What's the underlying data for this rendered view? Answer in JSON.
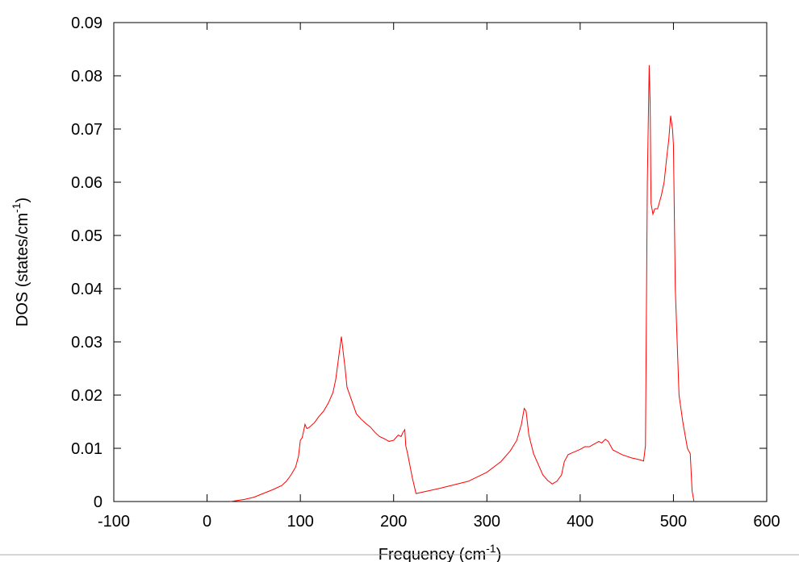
{
  "chart_data": {
    "type": "line",
    "xlabel": [
      "Frequency (cm",
      "-1",
      ")"
    ],
    "ylabel": [
      "DOS (states/cm",
      "-1",
      ")"
    ],
    "xlim": [
      -100,
      600
    ],
    "xticks": [
      -100,
      0,
      100,
      200,
      300,
      400,
      500,
      600
    ],
    "ylim": [
      0,
      0.09
    ],
    "yticks": [
      0,
      0.01,
      0.02,
      0.03,
      0.04,
      0.05,
      0.06,
      0.07,
      0.08,
      0.09
    ],
    "grid": false,
    "series": [
      {
        "color": "#ff0000",
        "x": [
          25,
          40,
          50,
          60,
          70,
          80,
          85,
          90,
          95,
          98,
          100,
          102,
          105,
          107,
          110,
          115,
          120,
          125,
          130,
          135,
          138,
          141,
          144,
          146,
          148,
          150,
          155,
          160,
          165,
          170,
          175,
          180,
          185,
          190,
          195,
          200,
          205,
          208,
          210,
          212,
          213,
          215,
          220,
          224,
          250,
          280,
          300,
          315,
          325,
          332,
          337,
          340,
          342,
          345,
          350,
          355,
          360,
          365,
          370,
          375,
          380,
          383,
          387,
          392,
          400,
          405,
          410,
          415,
          420,
          423,
          427,
          430,
          435,
          445,
          455,
          465,
          468,
          470,
          472,
          474,
          475,
          476,
          478,
          480,
          483,
          487,
          490,
          493,
          495,
          497,
          499,
          500,
          502,
          504,
          506,
          510,
          515,
          518,
          520,
          522
        ],
        "values": [
          0,
          0.0004,
          0.0008,
          0.0015,
          0.0022,
          0.003,
          0.0038,
          0.005,
          0.0065,
          0.0085,
          0.0115,
          0.012,
          0.0145,
          0.0137,
          0.014,
          0.0148,
          0.016,
          0.017,
          0.0185,
          0.0205,
          0.023,
          0.027,
          0.031,
          0.028,
          0.025,
          0.0215,
          0.019,
          0.0165,
          0.0155,
          0.0147,
          0.014,
          0.013,
          0.0122,
          0.0118,
          0.0113,
          0.0115,
          0.0125,
          0.0122,
          0.013,
          0.0135,
          0.0105,
          0.009,
          0.0045,
          0.0015,
          0.0025,
          0.0038,
          0.0055,
          0.0075,
          0.0095,
          0.0115,
          0.0145,
          0.0175,
          0.017,
          0.0125,
          0.009,
          0.007,
          0.005,
          0.004,
          0.0033,
          0.0038,
          0.005,
          0.0075,
          0.0088,
          0.0092,
          0.0098,
          0.0103,
          0.0103,
          0.0108,
          0.0113,
          0.011,
          0.0117,
          0.0113,
          0.0097,
          0.0088,
          0.0082,
          0.0078,
          0.0076,
          0.0105,
          0.06,
          0.082,
          0.075,
          0.056,
          0.054,
          0.055,
          0.055,
          0.0575,
          0.06,
          0.065,
          0.068,
          0.0725,
          0.07,
          0.067,
          0.04,
          0.03,
          0.02,
          0.015,
          0.01,
          0.009,
          0.002,
          0
        ]
      }
    ]
  }
}
